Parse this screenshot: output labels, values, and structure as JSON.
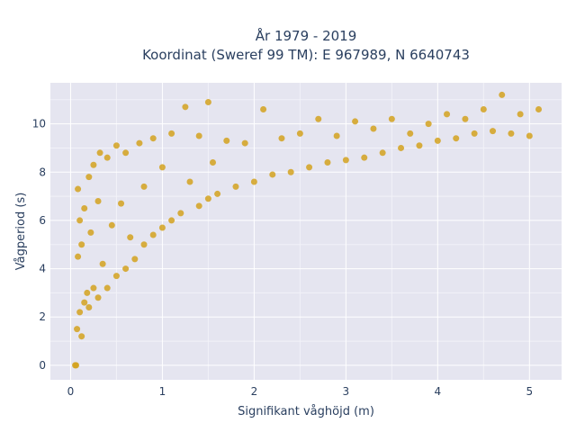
{
  "chart_data": {
    "type": "scatter",
    "title": [
      "År 1979 - 2019",
      "Koordinat (Sweref 99 TM): E 967989, N 6640743"
    ],
    "xlabel": "Signifikant våghöjd (m)",
    "ylabel": "Vågperiod (s)",
    "xlim": [
      -0.22,
      5.35
    ],
    "ylim": [
      -0.6,
      11.7
    ],
    "x_ticks": [
      0,
      1,
      2,
      3,
      4,
      5
    ],
    "y_ticks": [
      0,
      2,
      4,
      6,
      8,
      10
    ],
    "x_tick_labels": [
      "0",
      "1",
      "2",
      "3",
      "4",
      "5"
    ],
    "y_tick_labels": [
      "0",
      "2",
      "4",
      "6",
      "8",
      "10"
    ],
    "grid": true,
    "legend": "none",
    "marker_color": "#d4a21f",
    "plot_background": "#e5e5f0",
    "series": [
      {
        "x": [
          0.05,
          0.06,
          0.07,
          0.08,
          0.08,
          0.1,
          0.1,
          0.12,
          0.12,
          0.15,
          0.15,
          0.18,
          0.2,
          0.2,
          0.22,
          0.25,
          0.25,
          0.3,
          0.3,
          0.32,
          0.35,
          0.4,
          0.4,
          0.45,
          0.5,
          0.5,
          0.55,
          0.6,
          0.6,
          0.65,
          0.7,
          0.75,
          0.8,
          0.8,
          0.9,
          0.9,
          1.0,
          1.0,
          1.1,
          1.1,
          1.2,
          1.25,
          1.3,
          1.4,
          1.4,
          1.5,
          1.5,
          1.55,
          1.6,
          1.7,
          1.8,
          1.9,
          2.0,
          2.1,
          2.2,
          2.3,
          2.4,
          2.5,
          2.6,
          2.7,
          2.8,
          2.9,
          3.0,
          3.1,
          3.2,
          3.3,
          3.4,
          3.5,
          3.6,
          3.7,
          3.8,
          3.9,
          4.0,
          4.1,
          4.2,
          4.3,
          4.4,
          4.5,
          4.6,
          4.7,
          4.8,
          4.9,
          5.0,
          5.1
        ],
        "y": [
          0.0,
          0.0,
          1.5,
          4.5,
          7.3,
          2.2,
          6.0,
          1.2,
          5.0,
          2.6,
          6.5,
          3.0,
          2.4,
          7.8,
          5.5,
          3.2,
          8.3,
          2.8,
          6.8,
          8.8,
          4.2,
          3.2,
          8.6,
          5.8,
          3.7,
          9.1,
          6.7,
          4.0,
          8.8,
          5.3,
          4.4,
          9.2,
          5.0,
          7.4,
          5.4,
          9.4,
          5.7,
          8.2,
          6.0,
          9.6,
          6.3,
          10.7,
          7.6,
          6.6,
          9.5,
          6.9,
          10.9,
          8.4,
          7.1,
          9.3,
          7.4,
          9.2,
          7.6,
          10.6,
          7.9,
          9.4,
          8.0,
          9.6,
          8.2,
          10.2,
          8.4,
          9.5,
          8.5,
          10.1,
          8.6,
          9.8,
          8.8,
          10.2,
          9.0,
          9.6,
          9.1,
          10.0,
          9.3,
          10.4,
          9.4,
          10.2,
          9.6,
          10.6,
          9.7,
          11.2,
          9.6,
          10.4,
          9.5,
          10.6
        ]
      }
    ]
  }
}
